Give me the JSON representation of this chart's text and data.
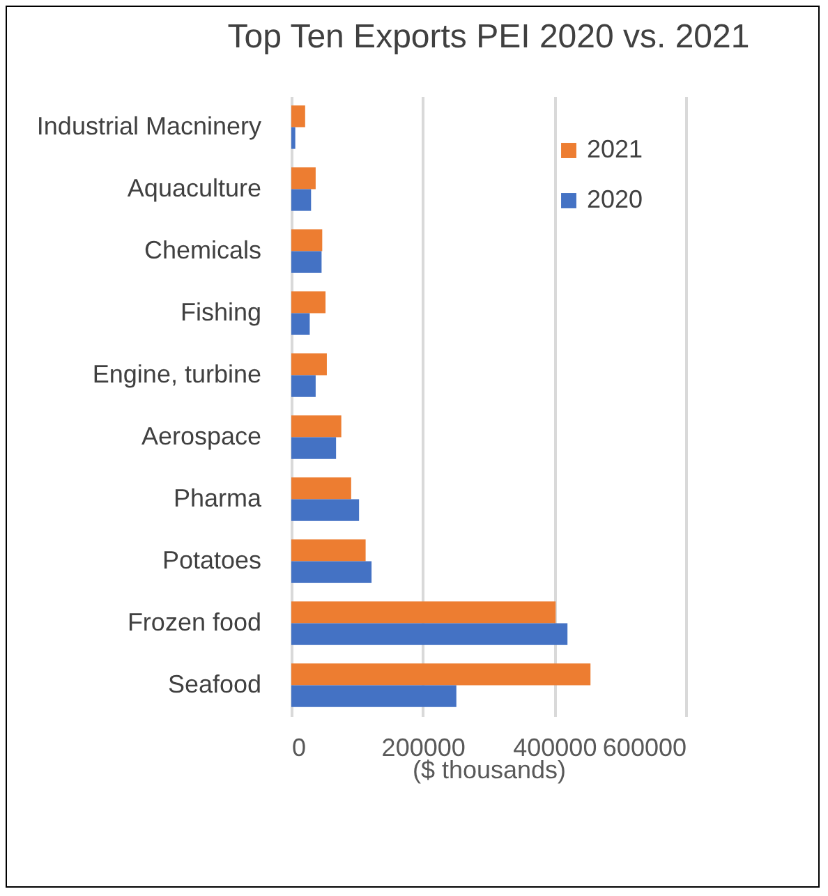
{
  "chart_data": {
    "type": "bar",
    "orientation": "horizontal",
    "title": "Top Ten Exports PEI 2020 vs. 2021",
    "xlabel": "($ thousands)",
    "categories": [
      "Industrial Macninery",
      "Aquaculture",
      "Chemicals",
      "Fishing",
      "Engine, turbine",
      "Aerospace",
      "Pharma",
      "Potatoes",
      "Frozen food",
      "Seafood"
    ],
    "series": [
      {
        "name": "2021",
        "color": "#ed7d31",
        "values": [
          21000,
          37000,
          47000,
          52000,
          54000,
          76000,
          91000,
          113000,
          402000,
          455000
        ]
      },
      {
        "name": "2020",
        "color": "#4472c4",
        "values": [
          6000,
          30000,
          46000,
          28000,
          37000,
          68000,
          103000,
          122000,
          420000,
          251000
        ]
      }
    ],
    "xlim": [
      0,
      600000
    ],
    "xticks": [
      0,
      200000,
      400000,
      600000
    ],
    "grid": "x",
    "legend": "top right"
  }
}
